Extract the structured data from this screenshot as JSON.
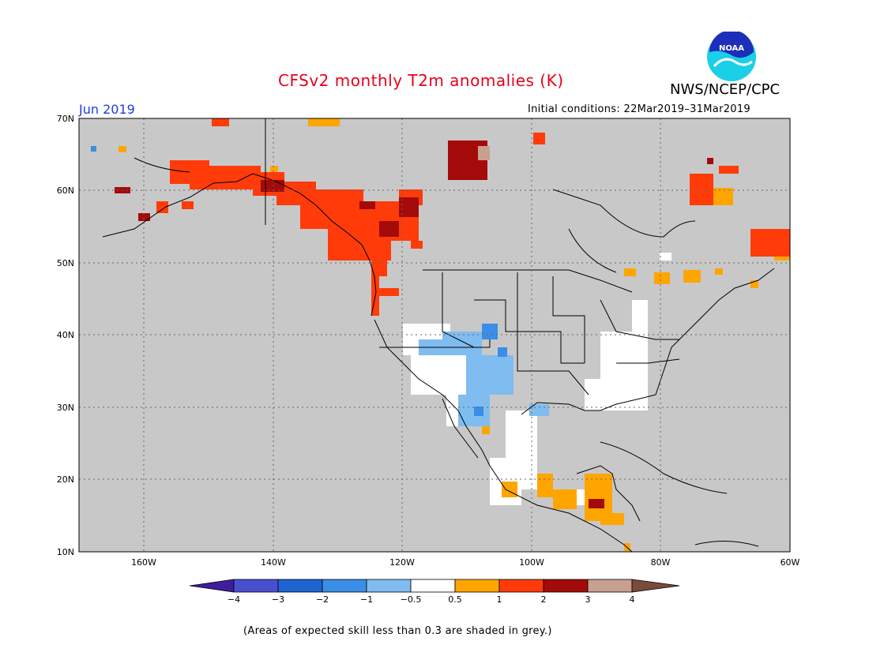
{
  "title": "CFSv2 monthly T2m anomalies (K)",
  "agency": "NWS/NCEP/CPC",
  "logo_text": "NOAA",
  "month_label": "Jun 2019",
  "initial_conditions": "Initial conditions: 22Mar2019–31Mar2019",
  "footnote": "(Areas of expected skill less than 0.3 are shaded in grey.)",
  "map": {
    "lon_range": [
      -172,
      -60
    ],
    "lat_range": [
      10,
      70
    ],
    "lat_labels": [
      "10N",
      "20N",
      "30N",
      "40N",
      "50N",
      "60N",
      "70N"
    ],
    "lon_labels": [
      "160W",
      "140W",
      "120W",
      "100W",
      "80W",
      "60W"
    ],
    "background_color": "#c8c8c8"
  },
  "colorbar": {
    "labels": [
      "−4",
      "−3",
      "−2",
      "−1",
      "−0.5",
      "0.5",
      "1",
      "2",
      "3",
      "4"
    ],
    "colors": [
      "#3f1d9b",
      "#4a4fd0",
      "#1f64d2",
      "#3a8ee6",
      "#7fbcf0",
      "#ffffff",
      "#ffa500",
      "#ff3b0a",
      "#a50a0a",
      "#c8a090",
      "#7a4a3a"
    ]
  },
  "colors": {
    "title": "#e8001c",
    "month": "#1d3fd6",
    "skill_grey": "#c8c8c8"
  }
}
